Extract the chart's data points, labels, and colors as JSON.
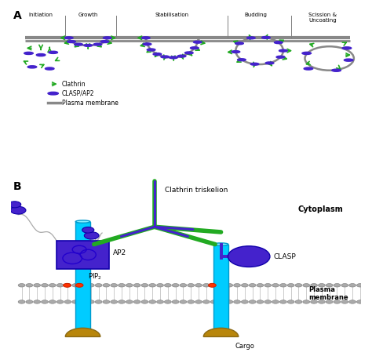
{
  "clathrin_color": "#22aa22",
  "clasp_color": "#4422cc",
  "membrane_color": "#888888",
  "cyan_color": "#00ccff",
  "orange_color": "#ff3300",
  "gold_color": "#b8860b",
  "bg_color": "#ffffff",
  "stage_labels": [
    "Initiation",
    "Growth",
    "Stabilisation",
    "Budding",
    "Scission &\nUncoating"
  ],
  "panel_B_labels": [
    "Clathrin triskelion",
    "AP2",
    "CLASP",
    "Cytoplasm",
    "Plasma\nmembrane",
    "PIP₂",
    "Cargo"
  ],
  "legend_items": [
    "Clathrin",
    "CLASP/AP2",
    "Plasma membrane"
  ]
}
